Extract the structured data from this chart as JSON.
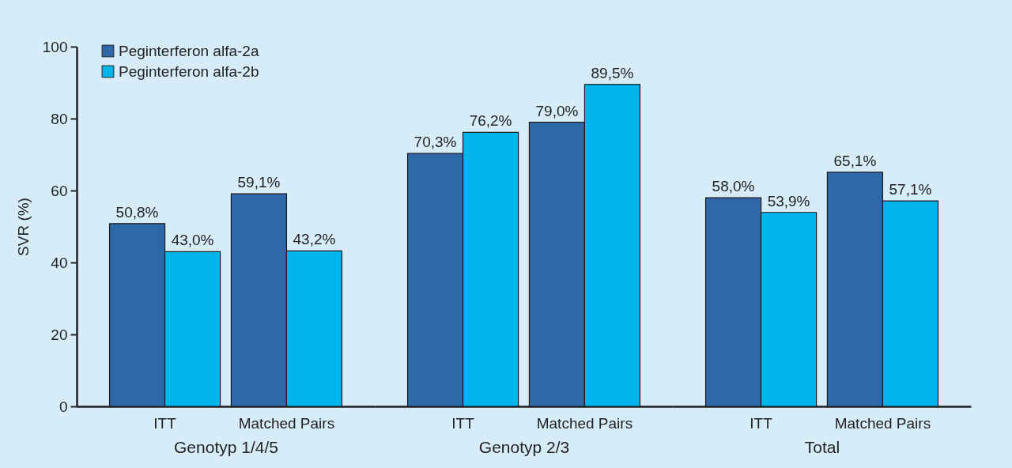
{
  "chart_data": {
    "type": "bar",
    "ylabel": "SVR (%)",
    "categories": [
      "ITT",
      "Matched Pairs",
      "ITT",
      "Matched Pairs",
      "ITT",
      "Matched Pairs"
    ],
    "annotations": [
      "Genotyp 1/4/5",
      "Genotyp 2/3",
      "Total"
    ],
    "series": [
      {
        "name": "Peginterferon alfa-2a",
        "color": "#2e68a8",
        "values": [
          50.8,
          59.1,
          70.3,
          79.0,
          58.0,
          65.1
        ],
        "value_labels": [
          "50,8%",
          "59,1%",
          "70,3%",
          "79,0%",
          "58,0%",
          "65,1%"
        ]
      },
      {
        "name": "Peginterferon alfa-2b",
        "color": "#00b5ec",
        "values": [
          43.0,
          43.2,
          76.2,
          89.5,
          53.9,
          57.1
        ],
        "value_labels": [
          "43,0%",
          "43,2%",
          "76,2%",
          "89,5%",
          "53,9%",
          "57,1%"
        ]
      }
    ],
    "ylim": [
      0,
      100
    ],
    "yticks": [
      0,
      20,
      40,
      60,
      80,
      100
    ],
    "grid": false,
    "legend": "top left"
  }
}
